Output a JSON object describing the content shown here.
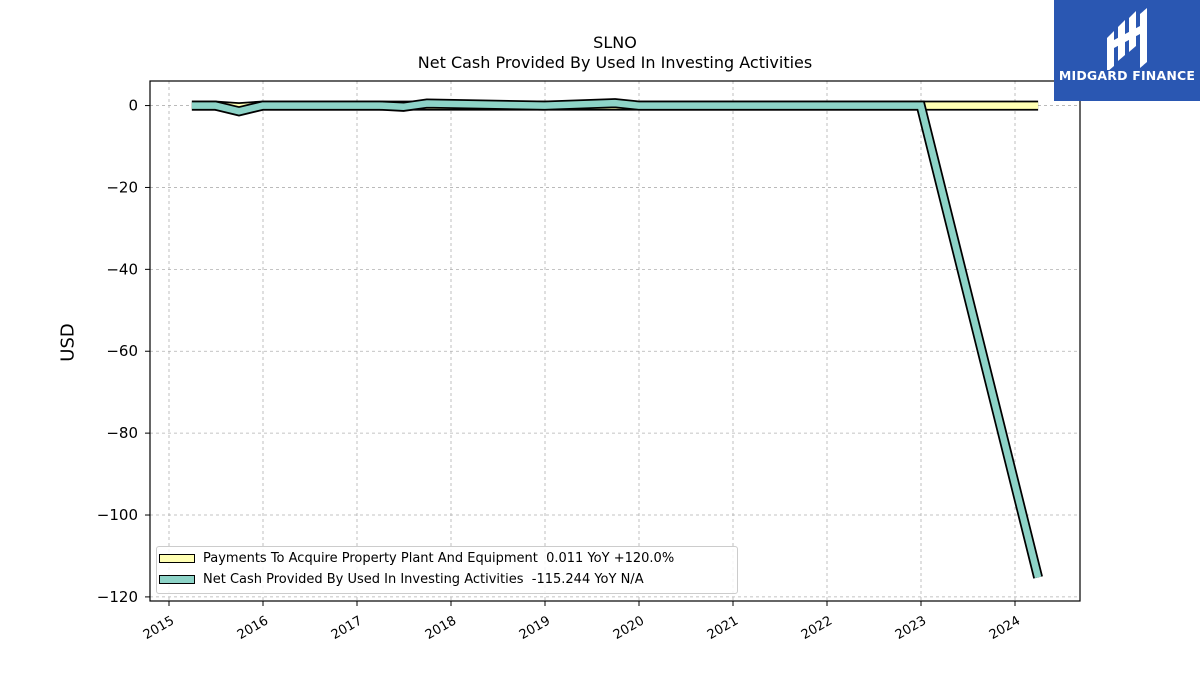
{
  "chart_data": {
    "type": "line",
    "title": "SLNO",
    "subtitle": "Net Cash Provided By Used In Investing Activities",
    "xlabel": "",
    "ylabel": "USD",
    "ylim": [
      -121,
      6
    ],
    "y_ticks": [
      0,
      -20,
      -40,
      -60,
      -80,
      -100,
      -120
    ],
    "y_tick_labels": [
      "0",
      "−20",
      "−40",
      "−60",
      "−80",
      "−100",
      "−120"
    ],
    "x_ticks": [
      "2015",
      "2016",
      "2017",
      "2018",
      "2019",
      "2020",
      "2021",
      "2022",
      "2023",
      "2024"
    ],
    "grid": true,
    "legend_position": "lower-left",
    "series": [
      {
        "name": "Payments To Acquire Property Plant And Equipment",
        "legend_label": "Payments To Acquire Property Plant And Equipment  0.011 YoY +120.0%",
        "color": "#ffffb3",
        "x": [
          "2015-03-31",
          "2015-06-30",
          "2015-09-30",
          "2015-12-31",
          "2017-06-30",
          "2018-06-30",
          "2019-12-31",
          "2022-12-31",
          "2024-03-31"
        ],
        "values": [
          0.0,
          0.0,
          -0.4,
          0.0,
          0.0,
          0.0,
          0.0,
          0.0,
          0.0
        ]
      },
      {
        "name": "Net Cash Provided By Used In Investing Activities",
        "legend_label": "Net Cash Provided By Used In Investing Activities  -115.244 YoY N/A",
        "color": "#8dd3c7",
        "x": [
          "2015-03-31",
          "2015-06-30",
          "2015-09-30",
          "2015-12-31",
          "2017-03-31",
          "2017-06-30",
          "2017-09-30",
          "2018-12-31",
          "2019-09-30",
          "2019-12-31",
          "2022-12-31",
          "2024-03-31"
        ],
        "values": [
          0.0,
          0.0,
          -1.4,
          0.0,
          0.0,
          -0.3,
          0.5,
          0.0,
          0.6,
          0.0,
          0.0,
          -115.244
        ]
      }
    ]
  },
  "logo": {
    "text": "MIDGARD FINANCE",
    "color": "#2a57b2"
  }
}
